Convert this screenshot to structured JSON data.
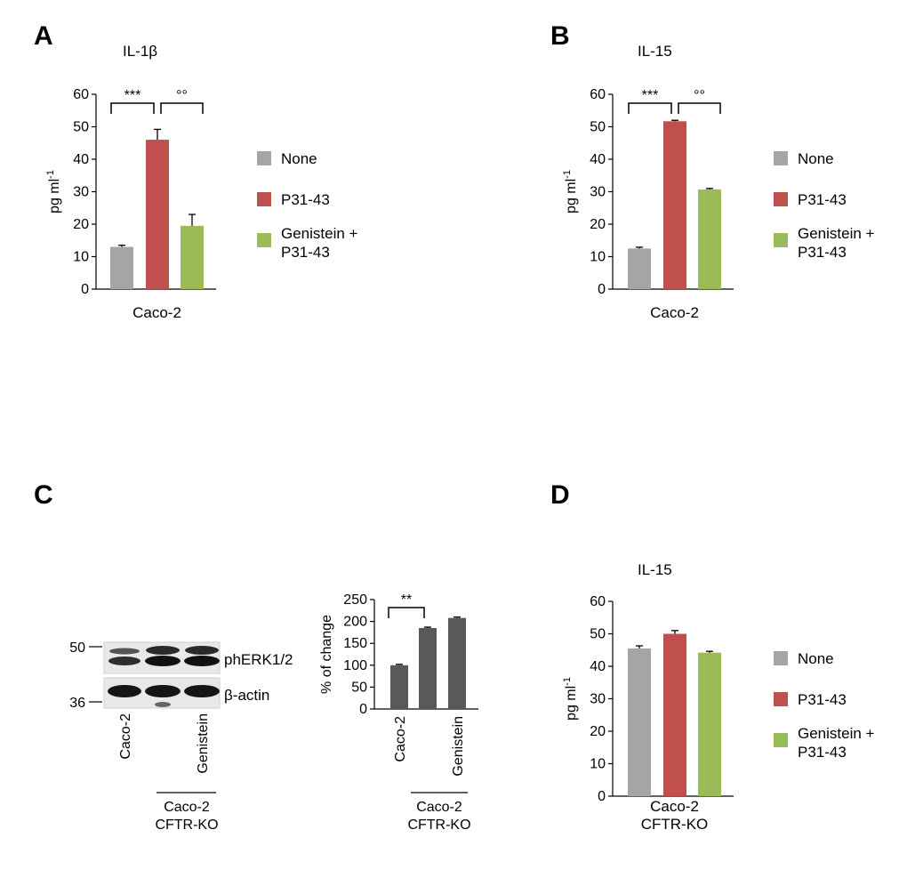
{
  "figure": {
    "panels": [
      "A",
      "B",
      "C",
      "D"
    ],
    "legend": {
      "items": [
        {
          "label": "None",
          "color": "#a5a5a5"
        },
        {
          "label": "P31-43",
          "color": "#c0504d"
        },
        {
          "label_line1": "Genistein +",
          "label_line2": "P31-43",
          "color": "#9bbb59"
        }
      ]
    },
    "blot": {
      "marker_top": "50",
      "marker_bottom": "36",
      "band_label_top": "phERK1/2",
      "band_label_bottom": "β-actin",
      "lanes": [
        "Caco-2",
        "",
        "Genistein"
      ],
      "group_line1": "Caco-2",
      "group_line2": "CFTR-KO"
    }
  },
  "chart_data": [
    {
      "panel": "A",
      "type": "bar",
      "title": "IL-1β",
      "ylabel": "pg ml-1",
      "xlabel": "Caco-2",
      "ylim": [
        0,
        60
      ],
      "yticks": [
        0,
        10,
        20,
        30,
        40,
        50,
        60
      ],
      "categories": [
        "None",
        "P31-43",
        "Genistein + P31-43"
      ],
      "values": [
        13,
        46,
        19.5
      ],
      "errors": [
        0.5,
        3.2,
        3.5
      ],
      "colors": [
        "#a5a5a5",
        "#c0504d",
        "#9bbb59"
      ],
      "significance": [
        {
          "from": 0,
          "to": 1,
          "label": "***"
        },
        {
          "from": 1,
          "to": 2,
          "label": "°°"
        }
      ]
    },
    {
      "panel": "B",
      "type": "bar",
      "title": "IL-15",
      "ylabel": "pg ml-1",
      "xlabel": "Caco-2",
      "ylim": [
        0,
        60
      ],
      "yticks": [
        0,
        10,
        20,
        30,
        40,
        50,
        60
      ],
      "categories": [
        "None",
        "P31-43",
        "Genistein + P31-43"
      ],
      "values": [
        12.5,
        51.7,
        30.7
      ],
      "errors": [
        0.4,
        0.3,
        0.3
      ],
      "colors": [
        "#a5a5a5",
        "#c0504d",
        "#9bbb59"
      ],
      "significance": [
        {
          "from": 0,
          "to": 1,
          "label": "***"
        },
        {
          "from": 1,
          "to": 2,
          "label": "°°"
        }
      ]
    },
    {
      "panel": "C",
      "type": "bar",
      "ylabel": "% of change",
      "ylim": [
        0,
        250
      ],
      "yticks": [
        0,
        50,
        100,
        150,
        200,
        250
      ],
      "categories": [
        "Caco-2",
        "",
        "Genistein"
      ],
      "values": [
        100,
        185,
        208
      ],
      "errors": [
        2,
        2,
        2
      ],
      "colors": [
        "#595959",
        "#595959",
        "#595959"
      ],
      "group_line1": "Caco-2",
      "group_line2": "CFTR-KO",
      "significance": [
        {
          "from": 0,
          "to": 1,
          "label": "**"
        }
      ]
    },
    {
      "panel": "D",
      "type": "bar",
      "title": "IL-15",
      "ylabel": "pg ml-1",
      "xlabel_line1": "Caco-2",
      "xlabel_line2": "CFTR-KO",
      "ylim": [
        0,
        60
      ],
      "yticks": [
        0,
        10,
        20,
        30,
        40,
        50,
        60
      ],
      "categories": [
        "None",
        "P31-43",
        "Genistein + P31-43"
      ],
      "values": [
        45.5,
        50,
        44.2
      ],
      "errors": [
        0.8,
        1.0,
        0.4
      ],
      "colors": [
        "#a5a5a5",
        "#c0504d",
        "#9bbb59"
      ]
    }
  ]
}
